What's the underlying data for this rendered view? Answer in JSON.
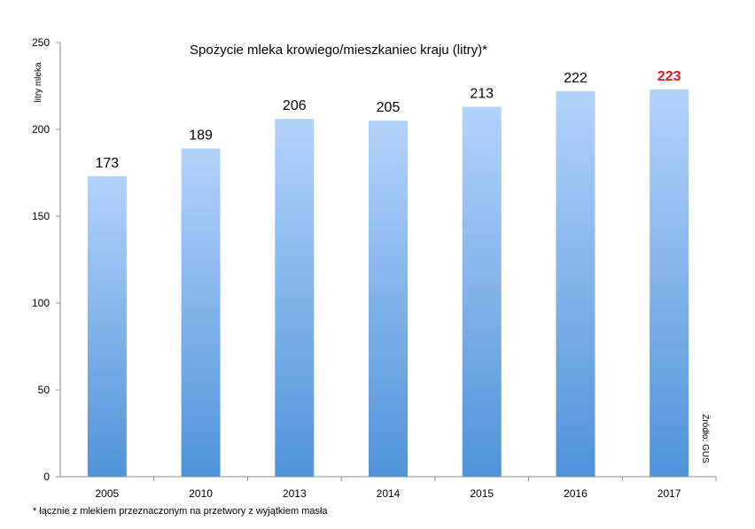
{
  "chart_data": {
    "type": "bar",
    "title": "Spożycie mleka krowiego/mieszkaniec kraju (litry)*",
    "ylabel": "litry mleka",
    "xlabel": "",
    "categories": [
      "2005",
      "2010",
      "2013",
      "2014",
      "2015",
      "2016",
      "2017"
    ],
    "values": [
      173,
      189,
      206,
      205,
      213,
      222,
      223
    ],
    "value_labels": [
      "173",
      "189",
      "206",
      "205",
      "213",
      "222",
      "223"
    ],
    "highlight_index": 6,
    "ylim": [
      0,
      250
    ],
    "yticks": [
      0,
      50,
      100,
      150,
      200,
      250
    ],
    "ytick_labels": [
      "0",
      "50",
      "100",
      "150",
      "200",
      "250"
    ],
    "grid": false,
    "source": "Źródło: GUS",
    "footnote": "* łącznie z mlekiem przeznaczonym na przetwory z wyjątkiem masła",
    "colors": {
      "bar_top": "#b3d3fb",
      "bar_bottom": "#4f93d9",
      "highlight_label": "#e8141c",
      "axis": "#8c8c8c"
    }
  }
}
